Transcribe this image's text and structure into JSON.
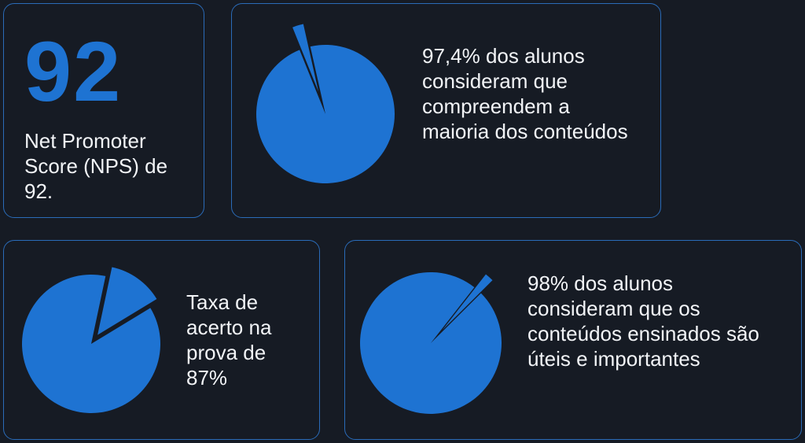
{
  "colors": {
    "background": "#161b24",
    "accent": "#1e73d2",
    "border": "#2a6bb8",
    "text": "#f2f4f7"
  },
  "nps": {
    "value": "92",
    "label": "Net Promoter Score (NPS) de 92."
  },
  "chart_data": [
    {
      "type": "pie",
      "name": "compreensao",
      "values": [
        97.4,
        2.6
      ],
      "exploded_slice": 1,
      "caption": "97,4% dos alunos consideram que compreendem a maioria dos conteúdos"
    },
    {
      "type": "pie",
      "name": "acerto",
      "values": [
        87,
        13
      ],
      "exploded_slice": 1,
      "caption": "Taxa de acerto na prova de 87%"
    },
    {
      "type": "pie",
      "name": "utilidade",
      "values": [
        98,
        2
      ],
      "exploded_slice": 1,
      "caption": "98% dos alunos consideram que os conteúdos ensinados são úteis e importantes"
    }
  ]
}
